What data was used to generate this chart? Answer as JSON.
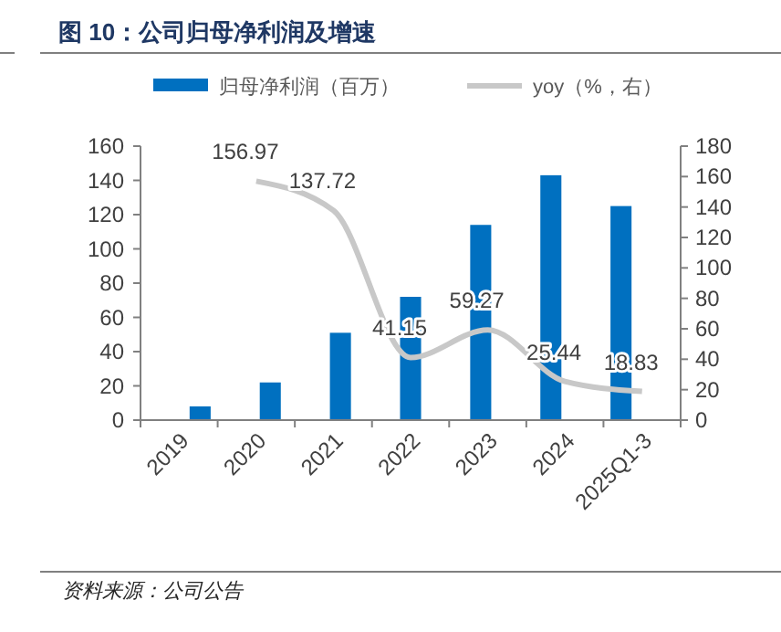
{
  "chart_data": {
    "type": "bar",
    "title": "图 10：公司归母净利润及增速",
    "annotations": [
      "资料来源：公司公告"
    ],
    "categories": [
      "2019",
      "2020",
      "2021",
      "2022",
      "2023",
      "2024",
      "2025Q1-3"
    ],
    "series": [
      {
        "name": "归母净利润（百万）",
        "color": "#0070c0",
        "values": [
          8,
          22,
          51,
          72,
          114,
          143,
          125
        ]
      },
      {
        "name": "yoy（%，右）",
        "type": "line",
        "axis": "y2",
        "color": "#c8c8c8",
        "values": [
          null,
          156.97,
          137.72,
          41.15,
          59.27,
          25.44,
          18.83
        ],
        "value_labels": [
          null,
          "156.97",
          "137.72",
          "41.15",
          "59.27",
          "25.44",
          "18.83"
        ]
      }
    ],
    "ylim": [
      0,
      160
    ],
    "yticks": [
      0,
      20,
      40,
      60,
      80,
      100,
      120,
      140,
      160
    ],
    "y2lim": [
      0,
      180
    ],
    "y2ticks": [
      0,
      20,
      40,
      60,
      80,
      100,
      120,
      140,
      160,
      180
    ],
    "grid": false,
    "legend": "top",
    "marker": "none",
    "line_style": "solid"
  }
}
